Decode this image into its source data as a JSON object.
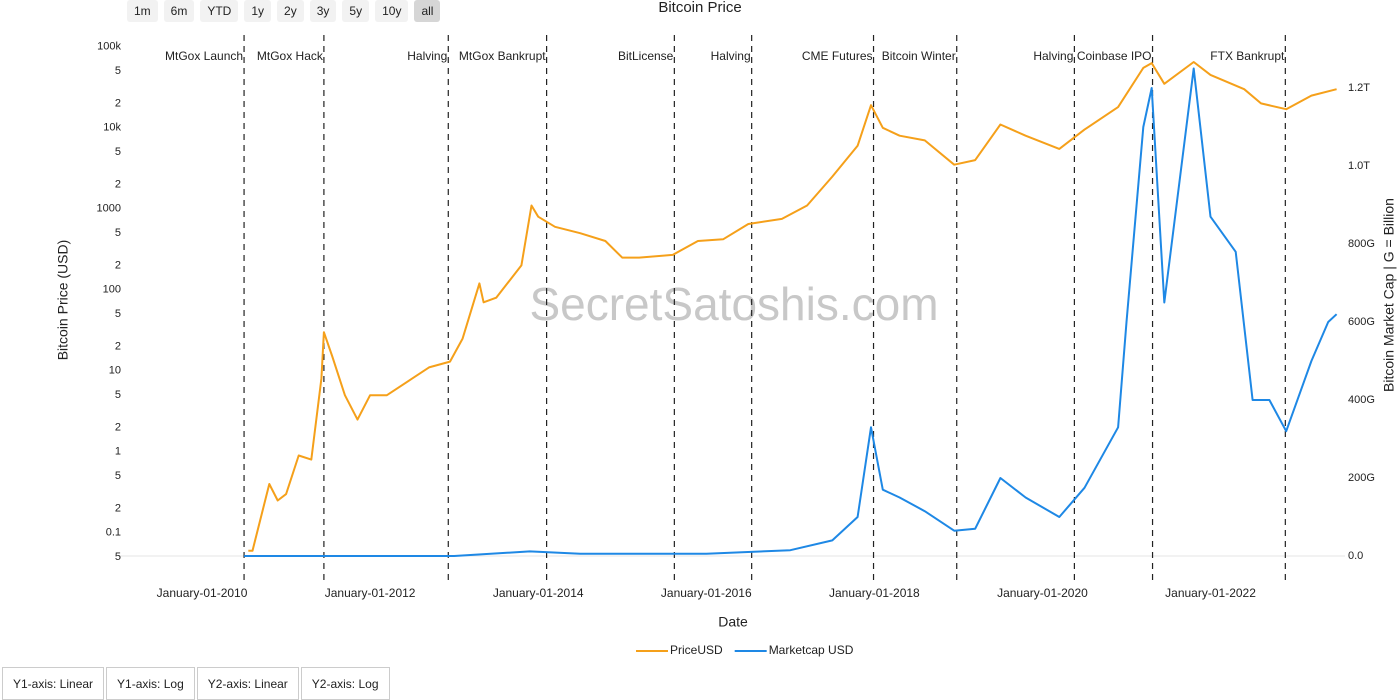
{
  "ui": {
    "range_buttons": [
      "1m",
      "6m",
      "YTD",
      "1y",
      "2y",
      "3y",
      "5y",
      "10y",
      "all"
    ],
    "selected_range": 8,
    "axis_buttons": [
      "Y1-axis: Linear",
      "Y1-axis: Log",
      "Y2-axis: Linear",
      "Y2-axis: Log"
    ]
  },
  "chart_data": {
    "type": "line",
    "title": "Bitcoin Price",
    "x_label": "Date",
    "y_label": "Bitcoin Price (USD)",
    "y2_label": "Bitcoin Market Cap | G = Billion",
    "watermark": "SecretSatoshis.com",
    "xlim": [
      2009,
      2023.6
    ],
    "xticks": [
      {
        "value": 2010,
        "label": "January-01-2010"
      },
      {
        "value": 2012,
        "label": "January-01-2012"
      },
      {
        "value": 2014,
        "label": "January-01-2014"
      },
      {
        "value": 2016,
        "label": "January-01-2016"
      },
      {
        "value": 2018,
        "label": "January-01-2018"
      },
      {
        "value": 2020,
        "label": "January-01-2020"
      },
      {
        "value": 2022,
        "label": "January-01-2022"
      }
    ],
    "y_scale": "log",
    "ylim": [
      0.04,
      140000
    ],
    "yticks": [
      {
        "value": 100000,
        "label": "100k"
      },
      {
        "value": 50000,
        "label": "5"
      },
      {
        "value": 20000,
        "label": "2"
      },
      {
        "value": 10000,
        "label": "10k"
      },
      {
        "value": 5000,
        "label": "5"
      },
      {
        "value": 2000,
        "label": "2"
      },
      1000,
      {
        "value": 500,
        "label": "5"
      },
      {
        "value": 200,
        "label": "2"
      },
      100,
      {
        "value": 50,
        "label": "5"
      },
      {
        "value": 20,
        "label": "2"
      },
      10,
      5,
      2,
      1,
      {
        "value": 0.5,
        "label": "5"
      },
      {
        "value": 0.2,
        "label": "2"
      },
      0.1,
      {
        "value": 0.05,
        "label": "5"
      }
    ],
    "y2lim": [
      -23,
      1336
    ],
    "y2ticks": [
      {
        "value": 0,
        "label": "0.0"
      },
      {
        "value": 200,
        "label": "200G"
      },
      {
        "value": 400,
        "label": "400G"
      },
      {
        "value": 600,
        "label": "600G"
      },
      {
        "value": 800,
        "label": "800G"
      },
      {
        "value": 1000,
        "label": "1.0T"
      },
      {
        "value": 1200,
        "label": "1.2T"
      }
    ],
    "events": [
      {
        "label": "MtGox Launch",
        "x": 2010.5
      },
      {
        "label": "MtGox Hack",
        "x": 2011.45
      },
      {
        "label": "Halving",
        "x": 2012.93
      },
      {
        "label": "MtGox Bankrupt",
        "x": 2014.1
      },
      {
        "label": "BitLicense",
        "x": 2015.62
      },
      {
        "label": "Halving",
        "x": 2016.54
      },
      {
        "label": "CME Futures",
        "x": 2017.99
      },
      {
        "label": "Bitcoin Winter",
        "x": 2018.98
      },
      {
        "label": "Halving",
        "x": 2020.38
      },
      {
        "label": "Coinbase IPO",
        "x": 2021.31
      },
      {
        "label": "FTX Bankrupt",
        "x": 2022.89
      }
    ],
    "series": [
      {
        "name": "PriceUSD",
        "color": "#f5a01a",
        "x": [
          2010.55,
          2010.6,
          2010.8,
          2010.9,
          2011.0,
          2011.15,
          2011.3,
          2011.42,
          2011.45,
          2011.55,
          2011.7,
          2011.85,
          2012.0,
          2012.2,
          2012.5,
          2012.7,
          2012.95,
          2013.1,
          2013.3,
          2013.35,
          2013.5,
          2013.8,
          2013.92,
          2014.0,
          2014.2,
          2014.5,
          2014.8,
          2015.0,
          2015.2,
          2015.6,
          2015.9,
          2016.2,
          2016.5,
          2016.9,
          2017.2,
          2017.5,
          2017.8,
          2017.96,
          2018.1,
          2018.3,
          2018.6,
          2018.95,
          2019.2,
          2019.5,
          2019.8,
          2020.2,
          2020.5,
          2020.9,
          2021.2,
          2021.3,
          2021.45,
          2021.8,
          2022.0,
          2022.4,
          2022.6,
          2022.9,
          2023.2,
          2023.5
        ],
        "values": [
          0.06,
          0.06,
          0.4,
          0.25,
          0.3,
          0.9,
          0.8,
          8,
          30,
          15,
          5,
          2.5,
          5,
          5,
          8,
          11,
          13,
          25,
          120,
          70,
          80,
          200,
          1100,
          800,
          600,
          500,
          400,
          250,
          250,
          270,
          400,
          420,
          650,
          750,
          1100,
          2500,
          6000,
          19000,
          10000,
          8000,
          7000,
          3500,
          4000,
          11000,
          8000,
          5500,
          9500,
          18000,
          55000,
          63000,
          35000,
          65000,
          45000,
          30000,
          20000,
          17000,
          25000,
          30000
        ]
      },
      {
        "name": "Marketcap USD",
        "color": "#1e88e5",
        "axis": "y2",
        "x": [
          2010.5,
          2013.0,
          2013.9,
          2014.5,
          2016.0,
          2017.0,
          2017.5,
          2017.8,
          2017.96,
          2018.1,
          2018.3,
          2018.6,
          2018.95,
          2019.2,
          2019.5,
          2019.8,
          2020.2,
          2020.5,
          2020.9,
          2021.0,
          2021.2,
          2021.3,
          2021.45,
          2021.8,
          2022.0,
          2022.3,
          2022.5,
          2022.7,
          2022.9,
          2023.2,
          2023.4,
          2023.5
        ],
        "values": [
          0,
          0.2,
          12,
          6,
          6,
          15,
          40,
          100,
          330,
          170,
          150,
          115,
          65,
          70,
          200,
          150,
          100,
          175,
          330,
          600,
          1100,
          1200,
          650,
          1250,
          870,
          780,
          400,
          400,
          320,
          500,
          600,
          620
        ]
      }
    ]
  }
}
